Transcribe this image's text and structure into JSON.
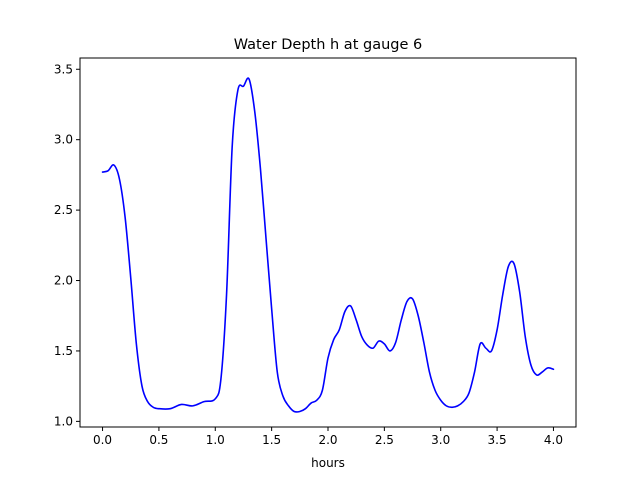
{
  "chart_data": {
    "type": "line",
    "title": "Water Depth h at gauge 6",
    "xlabel": "hours",
    "ylabel": "",
    "xlim": [
      -0.2,
      4.2
    ],
    "ylim": [
      0.96,
      3.58
    ],
    "grid": false,
    "x_ticks": [
      0.0,
      0.5,
      1.0,
      1.5,
      2.0,
      2.5,
      3.0,
      3.5,
      4.0
    ],
    "x_tick_labels": [
      "0.0",
      "0.5",
      "1.0",
      "1.5",
      "2.0",
      "2.5",
      "3.0",
      "3.5",
      "4.0"
    ],
    "y_ticks": [
      1.0,
      1.5,
      2.0,
      2.5,
      3.0,
      3.5
    ],
    "y_tick_labels": [
      "1.0",
      "1.5",
      "2.0",
      "2.5",
      "3.0",
      "3.5"
    ],
    "series": [
      {
        "color": "#0000ff",
        "x": [
          0.0,
          0.05,
          0.1,
          0.15,
          0.2,
          0.25,
          0.3,
          0.35,
          0.4,
          0.45,
          0.5,
          0.6,
          0.7,
          0.8,
          0.9,
          1.0,
          1.05,
          1.1,
          1.15,
          1.2,
          1.25,
          1.3,
          1.35,
          1.4,
          1.45,
          1.5,
          1.55,
          1.6,
          1.65,
          1.7,
          1.75,
          1.8,
          1.85,
          1.9,
          1.95,
          2.0,
          2.05,
          2.1,
          2.15,
          2.2,
          2.25,
          2.3,
          2.35,
          2.4,
          2.45,
          2.5,
          2.55,
          2.6,
          2.65,
          2.7,
          2.75,
          2.8,
          2.85,
          2.9,
          2.95,
          3.0,
          3.05,
          3.1,
          3.15,
          3.2,
          3.25,
          3.3,
          3.35,
          3.4,
          3.45,
          3.5,
          3.55,
          3.6,
          3.65,
          3.7,
          3.75,
          3.8,
          3.85,
          3.9,
          3.95,
          4.0
        ],
        "y": [
          2.77,
          2.78,
          2.82,
          2.72,
          2.45,
          2.02,
          1.55,
          1.25,
          1.14,
          1.1,
          1.09,
          1.09,
          1.12,
          1.11,
          1.14,
          1.16,
          1.3,
          1.9,
          2.95,
          3.35,
          3.38,
          3.43,
          3.2,
          2.8,
          2.3,
          1.8,
          1.35,
          1.18,
          1.11,
          1.07,
          1.07,
          1.09,
          1.13,
          1.15,
          1.22,
          1.45,
          1.58,
          1.65,
          1.78,
          1.82,
          1.72,
          1.6,
          1.54,
          1.52,
          1.57,
          1.55,
          1.5,
          1.56,
          1.72,
          1.85,
          1.87,
          1.75,
          1.56,
          1.35,
          1.22,
          1.15,
          1.11,
          1.1,
          1.11,
          1.14,
          1.2,
          1.35,
          1.55,
          1.52,
          1.5,
          1.65,
          1.9,
          2.1,
          2.12,
          1.92,
          1.6,
          1.4,
          1.33,
          1.35,
          1.38,
          1.37
        ]
      }
    ]
  }
}
